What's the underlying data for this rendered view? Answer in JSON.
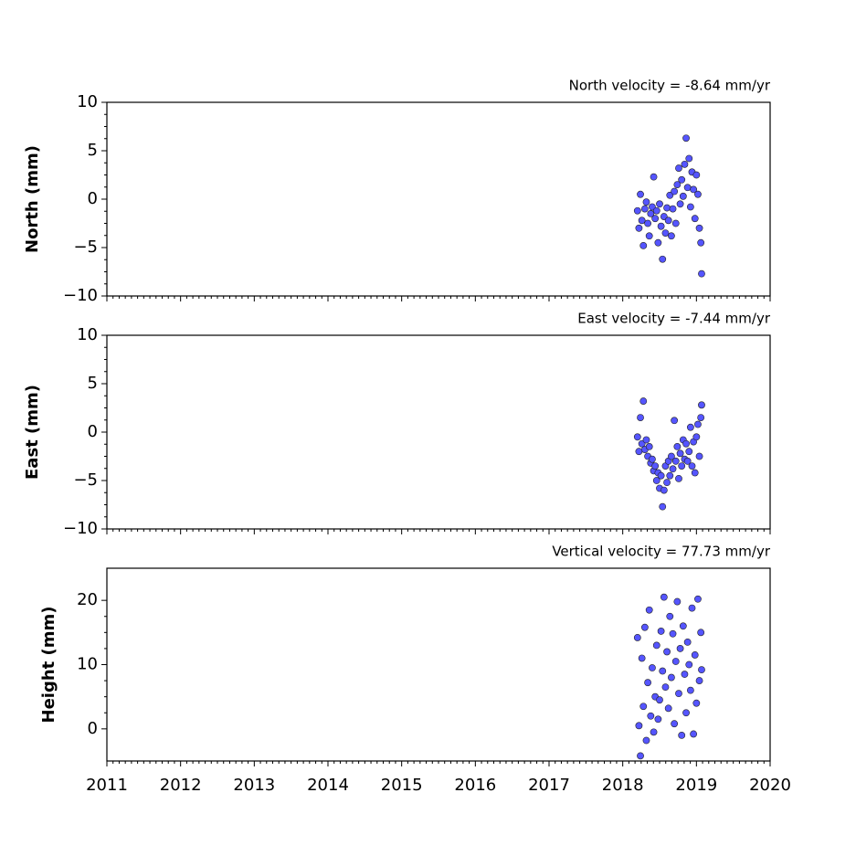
{
  "chart_data": [
    {
      "type": "scatter",
      "title": "North velocity = -8.64 mm/yr",
      "y_label": "North (mm)",
      "color": "#5555ff",
      "xlim": [
        2011,
        2020
      ],
      "xticks": [
        2011,
        2012,
        2013,
        2014,
        2015,
        2016,
        2017,
        2018,
        2019,
        2020
      ],
      "ylim": [
        -10,
        10
      ],
      "yticks": [
        {
          "value": -10,
          "label": "−10"
        },
        {
          "value": -5,
          "label": "−5"
        },
        0,
        5,
        10
      ],
      "x": [
        2018.2,
        2018.22,
        2018.24,
        2018.26,
        2018.28,
        2018.3,
        2018.32,
        2018.34,
        2018.36,
        2018.38,
        2018.4,
        2018.42,
        2018.44,
        2018.46,
        2018.48,
        2018.5,
        2018.52,
        2018.54,
        2018.56,
        2018.58,
        2018.6,
        2018.62,
        2018.64,
        2018.66,
        2018.68,
        2018.7,
        2018.72,
        2018.74,
        2018.76,
        2018.78,
        2018.8,
        2018.82,
        2018.84,
        2018.86,
        2018.88,
        2018.9,
        2018.92,
        2018.94,
        2018.96,
        2018.98,
        2019.0,
        2019.02,
        2019.04,
        2019.06,
        2019.07
      ],
      "values": [
        -1.2,
        -3.0,
        0.5,
        -2.2,
        -4.8,
        -1.0,
        -0.3,
        -2.5,
        -3.8,
        -1.5,
        -0.8,
        2.3,
        -2.0,
        -1.2,
        -4.5,
        -0.5,
        -2.8,
        -6.2,
        -1.8,
        -3.5,
        -0.9,
        -2.2,
        0.4,
        -3.8,
        -1.0,
        0.8,
        -2.5,
        1.5,
        3.2,
        -0.5,
        2.0,
        0.3,
        3.6,
        6.3,
        1.2,
        4.2,
        -0.8,
        2.8,
        1.0,
        -2.0,
        2.5,
        0.5,
        -3.0,
        -4.5,
        -7.7
      ]
    },
    {
      "type": "scatter",
      "title": "East velocity = -7.44 mm/yr",
      "y_label": "East (mm)",
      "color": "#5555ff",
      "xlim": [
        2011,
        2020
      ],
      "xticks": [
        2011,
        2012,
        2013,
        2014,
        2015,
        2016,
        2017,
        2018,
        2019,
        2020
      ],
      "ylim": [
        -10,
        10
      ],
      "yticks": [
        {
          "value": -10,
          "label": "−10"
        },
        {
          "value": -5,
          "label": "−5"
        },
        0,
        5,
        10
      ],
      "x": [
        2018.2,
        2018.22,
        2018.24,
        2018.26,
        2018.28,
        2018.3,
        2018.32,
        2018.34,
        2018.36,
        2018.38,
        2018.4,
        2018.42,
        2018.44,
        2018.46,
        2018.48,
        2018.5,
        2018.52,
        2018.54,
        2018.56,
        2018.58,
        2018.6,
        2018.62,
        2018.64,
        2018.66,
        2018.68,
        2018.7,
        2018.72,
        2018.74,
        2018.76,
        2018.78,
        2018.8,
        2018.82,
        2018.84,
        2018.86,
        2018.88,
        2018.9,
        2018.92,
        2018.94,
        2018.96,
        2018.98,
        2019.0,
        2019.02,
        2019.04,
        2019.06,
        2019.07
      ],
      "values": [
        -0.5,
        -2.0,
        1.5,
        -1.2,
        3.2,
        -1.8,
        -0.8,
        -2.5,
        -1.5,
        -3.2,
        -2.8,
        -4.0,
        -3.5,
        -5.0,
        -4.2,
        -5.8,
        -4.5,
        -7.7,
        -6.0,
        -3.5,
        -5.2,
        -3.0,
        -4.5,
        -2.5,
        -3.8,
        1.2,
        -3.0,
        -1.5,
        -4.8,
        -2.2,
        -3.5,
        -0.8,
        -2.8,
        -1.2,
        -3.0,
        -2.0,
        0.5,
        -3.5,
        -1.0,
        -4.2,
        -0.5,
        0.8,
        -2.5,
        1.5,
        2.8
      ]
    },
    {
      "type": "scatter",
      "title": "Vertical velocity = 77.73 mm/yr",
      "y_label": "Height (mm)",
      "color": "#5555ff",
      "xlim": [
        2011,
        2020
      ],
      "xticks": [
        2011,
        2012,
        2013,
        2014,
        2015,
        2016,
        2017,
        2018,
        2019,
        2020
      ],
      "ylim": [
        -5,
        25
      ],
      "yticks": [
        0,
        10,
        20
      ],
      "x": [
        2018.2,
        2018.22,
        2018.24,
        2018.26,
        2018.28,
        2018.3,
        2018.32,
        2018.34,
        2018.36,
        2018.38,
        2018.4,
        2018.42,
        2018.44,
        2018.46,
        2018.48,
        2018.5,
        2018.52,
        2018.54,
        2018.56,
        2018.58,
        2018.6,
        2018.62,
        2018.64,
        2018.66,
        2018.68,
        2018.7,
        2018.72,
        2018.74,
        2018.76,
        2018.78,
        2018.8,
        2018.82,
        2018.84,
        2018.86,
        2018.88,
        2018.9,
        2018.92,
        2018.94,
        2018.96,
        2018.98,
        2019.0,
        2019.02,
        2019.04,
        2019.06,
        2019.07
      ],
      "values": [
        14.2,
        0.5,
        -4.2,
        11.0,
        3.5,
        15.8,
        -1.8,
        7.2,
        18.5,
        2.0,
        9.5,
        -0.5,
        5.0,
        13.0,
        1.5,
        4.5,
        15.2,
        9.0,
        20.5,
        6.5,
        12.0,
        3.2,
        17.5,
        8.0,
        14.8,
        0.8,
        10.5,
        19.8,
        5.5,
        12.5,
        -1.0,
        16.0,
        8.5,
        2.5,
        13.5,
        10.0,
        6.0,
        18.8,
        -0.8,
        11.5,
        4.0,
        20.2,
        7.5,
        15.0,
        9.2
      ]
    }
  ]
}
